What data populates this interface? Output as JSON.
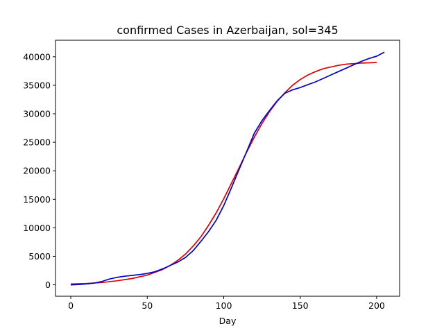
{
  "chart_data": {
    "type": "line",
    "title": "confirmed Cases in Azerbaijan, sol=345",
    "xlabel": "Day",
    "ylabel": "",
    "xlim": [
      -10,
      215
    ],
    "ylim": [
      -2000,
      42900
    ],
    "xticks": [
      0,
      50,
      100,
      150,
      200
    ],
    "yticks": [
      0,
      5000,
      10000,
      15000,
      20000,
      25000,
      30000,
      35000,
      40000
    ],
    "grid": false,
    "series": [
      {
        "color": "#dd0000",
        "x": [
          0,
          10,
          20,
          30,
          40,
          50,
          60,
          65,
          70,
          75,
          80,
          85,
          90,
          95,
          100,
          105,
          110,
          115,
          120,
          125,
          130,
          135,
          140,
          145,
          150,
          155,
          160,
          165,
          170,
          175,
          180,
          185,
          190,
          195,
          200
        ],
        "y": [
          150,
          230,
          400,
          700,
          1100,
          1700,
          2700,
          3400,
          4300,
          5400,
          6800,
          8400,
          10400,
          12600,
          15100,
          17800,
          20500,
          23300,
          25900,
          28300,
          30400,
          32200,
          33700,
          35000,
          36000,
          36800,
          37400,
          37900,
          38200,
          38500,
          38700,
          38800,
          38900,
          38950,
          39000
        ]
      },
      {
        "color": "#0000cc",
        "x": [
          0,
          5,
          10,
          15,
          20,
          25,
          30,
          35,
          40,
          45,
          50,
          55,
          60,
          65,
          70,
          75,
          80,
          85,
          90,
          95,
          100,
          105,
          110,
          115,
          120,
          125,
          130,
          135,
          140,
          145,
          150,
          155,
          160,
          165,
          170,
          175,
          180,
          185,
          190,
          195,
          200,
          205
        ],
        "y": [
          0,
          60,
          150,
          300,
          550,
          1000,
          1300,
          1500,
          1650,
          1800,
          2000,
          2300,
          2800,
          3400,
          4000,
          4800,
          6000,
          7600,
          9300,
          11300,
          13900,
          17000,
          20200,
          23400,
          26600,
          28800,
          30600,
          32300,
          33600,
          34200,
          34600,
          35100,
          35600,
          36200,
          36800,
          37400,
          38000,
          38600,
          39200,
          39700,
          40100,
          40800
        ]
      }
    ]
  }
}
